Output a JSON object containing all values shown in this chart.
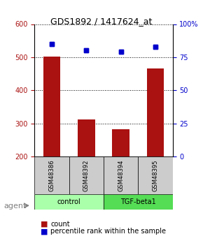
{
  "title": "GDS1892 / 1417624_at",
  "samples": [
    "GSM48386",
    "GSM48392",
    "GSM48394",
    "GSM48395"
  ],
  "bar_values": [
    502,
    312,
    282,
    467
  ],
  "percentile_values": [
    85,
    80,
    79,
    83
  ],
  "bar_color": "#aa1111",
  "dot_color": "#0000cc",
  "ylim_left": [
    200,
    600
  ],
  "ylim_right": [
    0,
    100
  ],
  "yticks_left": [
    200,
    300,
    400,
    500,
    600
  ],
  "yticks_right": [
    0,
    25,
    50,
    75,
    100
  ],
  "yticklabels_right": [
    "0",
    "25",
    "50",
    "75",
    "100%"
  ],
  "groups": [
    {
      "label": "control",
      "samples": [
        "GSM48386",
        "GSM48392"
      ],
      "color": "#aaffaa"
    },
    {
      "label": "TGF-beta1",
      "samples": [
        "GSM48394",
        "GSM48395"
      ],
      "color": "#55dd55"
    }
  ],
  "agent_label": "agent",
  "legend_count_label": "count",
  "legend_pct_label": "percentile rank within the sample",
  "bar_width": 0.5,
  "grid_color": "#000000",
  "background_color": "#ffffff",
  "plot_bg": "#ffffff",
  "sample_area_color": "#cccccc"
}
